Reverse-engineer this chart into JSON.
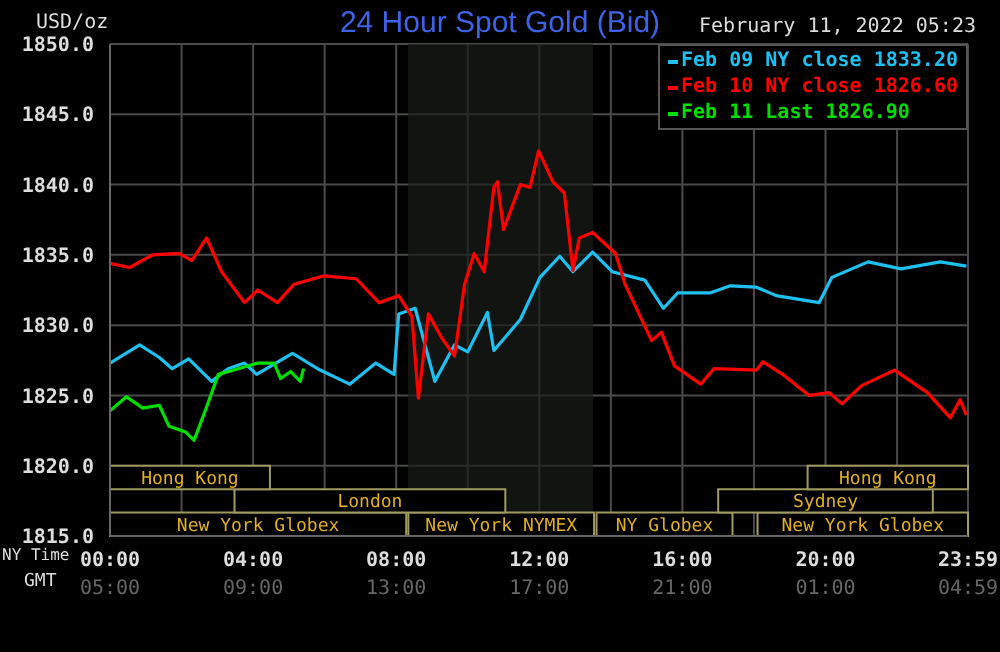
{
  "chart_data": {
    "type": "line",
    "title": "24 Hour Spot Gold (Bid)",
    "subtitle": "February 11, 2022 05:23",
    "ylabel": "USD/oz",
    "xlabel": "NY Time",
    "x2label": "GMT",
    "xlim": [
      0,
      23.983
    ],
    "xticks": [
      {
        "value": 0,
        "label": "00:00"
      },
      {
        "value": 2,
        "label": null
      },
      {
        "value": 4,
        "label": "04:00"
      },
      {
        "value": 6,
        "label": null
      },
      {
        "value": 8,
        "label": "08:00"
      },
      {
        "value": 10,
        "label": null
      },
      {
        "value": 12,
        "label": "12:00"
      },
      {
        "value": 14,
        "label": null
      },
      {
        "value": 16,
        "label": "16:00"
      },
      {
        "value": 18,
        "label": null
      },
      {
        "value": 20,
        "label": "20:00"
      },
      {
        "value": 22,
        "label": null
      },
      {
        "value": 23.983,
        "label": "23:59"
      }
    ],
    "x2lim": [
      "2022-02-11T05:00",
      "2022-02-12T04:59"
    ],
    "x2ticks": [
      {
        "value": "2022-02-11T05:00",
        "label": "05:00"
      },
      {
        "value": "2022-02-11T09:00",
        "label": "09:00"
      },
      {
        "value": "2022-02-11T13:00",
        "label": "13:00"
      },
      {
        "value": "2022-02-11T17:00",
        "label": "17:00"
      },
      {
        "value": "2022-02-11T21:00",
        "label": "21:00"
      },
      {
        "value": "2022-02-12T01:00",
        "label": "01:00"
      },
      {
        "value": "2022-02-12T04:59",
        "label": "04:59"
      }
    ],
    "ylim": [
      1815,
      1850
    ],
    "yticks": [
      {
        "value": 1815,
        "label": "1815.0"
      },
      {
        "value": 1820,
        "label": "1820.0"
      },
      {
        "value": 1825,
        "label": "1825.0"
      },
      {
        "value": 1830,
        "label": "1830.0"
      },
      {
        "value": 1835,
        "label": "1835.0"
      },
      {
        "value": 1840,
        "label": "1840.0"
      },
      {
        "value": 1845,
        "label": "1845.0"
      },
      {
        "value": 1850,
        "label": "1850.0"
      }
    ],
    "grid": true,
    "legend": "top right",
    "bands": [
      {
        "axis": "x",
        "from": 8.33,
        "to": 13.5,
        "label": null,
        "color": "#1a1d1a"
      },
      {
        "axis": "x",
        "from": 0,
        "to": 8.28,
        "label": "New York Globex",
        "color": "#a09a60"
      },
      {
        "axis": "x",
        "from": 8.34,
        "to": 13.53,
        "label": "New York NYMEX",
        "color": "#a09a60"
      },
      {
        "axis": "x",
        "from": 13.6,
        "to": 17.4,
        "label": "NY Globex",
        "color": "#a09a60"
      },
      {
        "axis": "x",
        "from": 18.1,
        "to": 23.983,
        "label": "New York Globex",
        "color": "#a09a60"
      },
      {
        "axis": "x",
        "from": 3.48,
        "to": 11.05,
        "label": "London",
        "color": "#a09a60"
      },
      {
        "axis": "x",
        "from": 17.0,
        "to": 23.0,
        "label": "Sydney",
        "color": "#a09a60"
      },
      {
        "axis": "x",
        "from": 0,
        "to": 4.47,
        "label": "Hong Kong",
        "color": "#a09a60"
      },
      {
        "axis": "x",
        "from": 19.5,
        "to": 23.983,
        "label": "Hong Kong",
        "color": "#a09a60"
      }
    ],
    "series": [
      {
        "name": "Feb 09 NY close 1833.20",
        "color": "#1ec0f0",
        "x": [
          0,
          0.83,
          1.38,
          1.74,
          2.2,
          2.84,
          3.3,
          3.76,
          4.1,
          5.1,
          5.8,
          6.7,
          7.43,
          7.94,
          8.07,
          8.53,
          9.08,
          9.63,
          10.0,
          10.55,
          10.73,
          11.47,
          12.02,
          12.57,
          12.94,
          13.49,
          14.04,
          14.95,
          15.47,
          15.87,
          16.79,
          17.34,
          18.07,
          18.62,
          19.82,
          20.18,
          21.19,
          22.11,
          23.21,
          23.94
        ],
        "values": [
          1827.3,
          1828.6,
          1827.7,
          1826.9,
          1827.6,
          1826.0,
          1826.9,
          1827.3,
          1826.5,
          1828.0,
          1826.9,
          1825.8,
          1827.3,
          1826.5,
          1830.8,
          1831.2,
          1826.0,
          1828.6,
          1828.1,
          1830.9,
          1828.2,
          1830.4,
          1833.4,
          1834.9,
          1833.8,
          1835.2,
          1833.8,
          1833.2,
          1831.2,
          1832.3,
          1832.3,
          1832.8,
          1832.7,
          1832.1,
          1831.6,
          1833.4,
          1834.5,
          1834.0,
          1834.5,
          1834.2
        ]
      },
      {
        "name": "Feb 10 NY close 1826.60",
        "color": "#ff0000",
        "x": [
          0,
          0.55,
          1.19,
          1.93,
          2.29,
          2.7,
          3.12,
          3.76,
          4.13,
          4.68,
          5.14,
          5.96,
          6.88,
          7.52,
          8.07,
          8.44,
          8.62,
          8.9,
          9.27,
          9.63,
          9.91,
          10.18,
          10.46,
          10.73,
          10.83,
          11.0,
          11.47,
          11.74,
          11.98,
          12.38,
          12.7,
          12.94,
          13.12,
          13.49,
          14.13,
          14.4,
          15.14,
          15.41,
          15.78,
          16.51,
          16.88,
          18.07,
          18.25,
          18.8,
          19.54,
          20.1,
          20.46,
          21.01,
          21.93,
          22.85,
          23.49,
          23.76,
          23.94
        ],
        "values": [
          1834.4,
          1834.1,
          1835.0,
          1835.1,
          1834.6,
          1836.2,
          1833.8,
          1831.6,
          1832.5,
          1831.6,
          1832.9,
          1833.5,
          1833.3,
          1831.6,
          1832.1,
          1830.6,
          1824.8,
          1830.8,
          1829.1,
          1827.8,
          1832.9,
          1835.1,
          1833.8,
          1839.8,
          1840.2,
          1836.8,
          1840.0,
          1839.8,
          1842.4,
          1840.2,
          1839.4,
          1833.9,
          1836.2,
          1836.6,
          1835.1,
          1832.9,
          1828.9,
          1829.5,
          1827.1,
          1825.8,
          1826.9,
          1826.8,
          1827.4,
          1826.5,
          1825.0,
          1825.2,
          1824.4,
          1825.7,
          1826.8,
          1825.2,
          1823.4,
          1824.7,
          1823.6
        ]
      },
      {
        "name": "Feb 11 Last 1826.90",
        "color": "#00e000",
        "x": [
          0,
          0.46,
          0.92,
          1.38,
          1.65,
          2.11,
          2.35,
          2.66,
          3.03,
          3.58,
          4.13,
          4.59,
          4.77,
          5.05,
          5.32,
          5.41
        ],
        "values": [
          1823.9,
          1824.9,
          1824.1,
          1824.3,
          1822.8,
          1822.4,
          1821.8,
          1823.9,
          1826.5,
          1826.9,
          1827.3,
          1827.3,
          1826.2,
          1826.7,
          1826.0,
          1826.9
        ]
      }
    ]
  }
}
